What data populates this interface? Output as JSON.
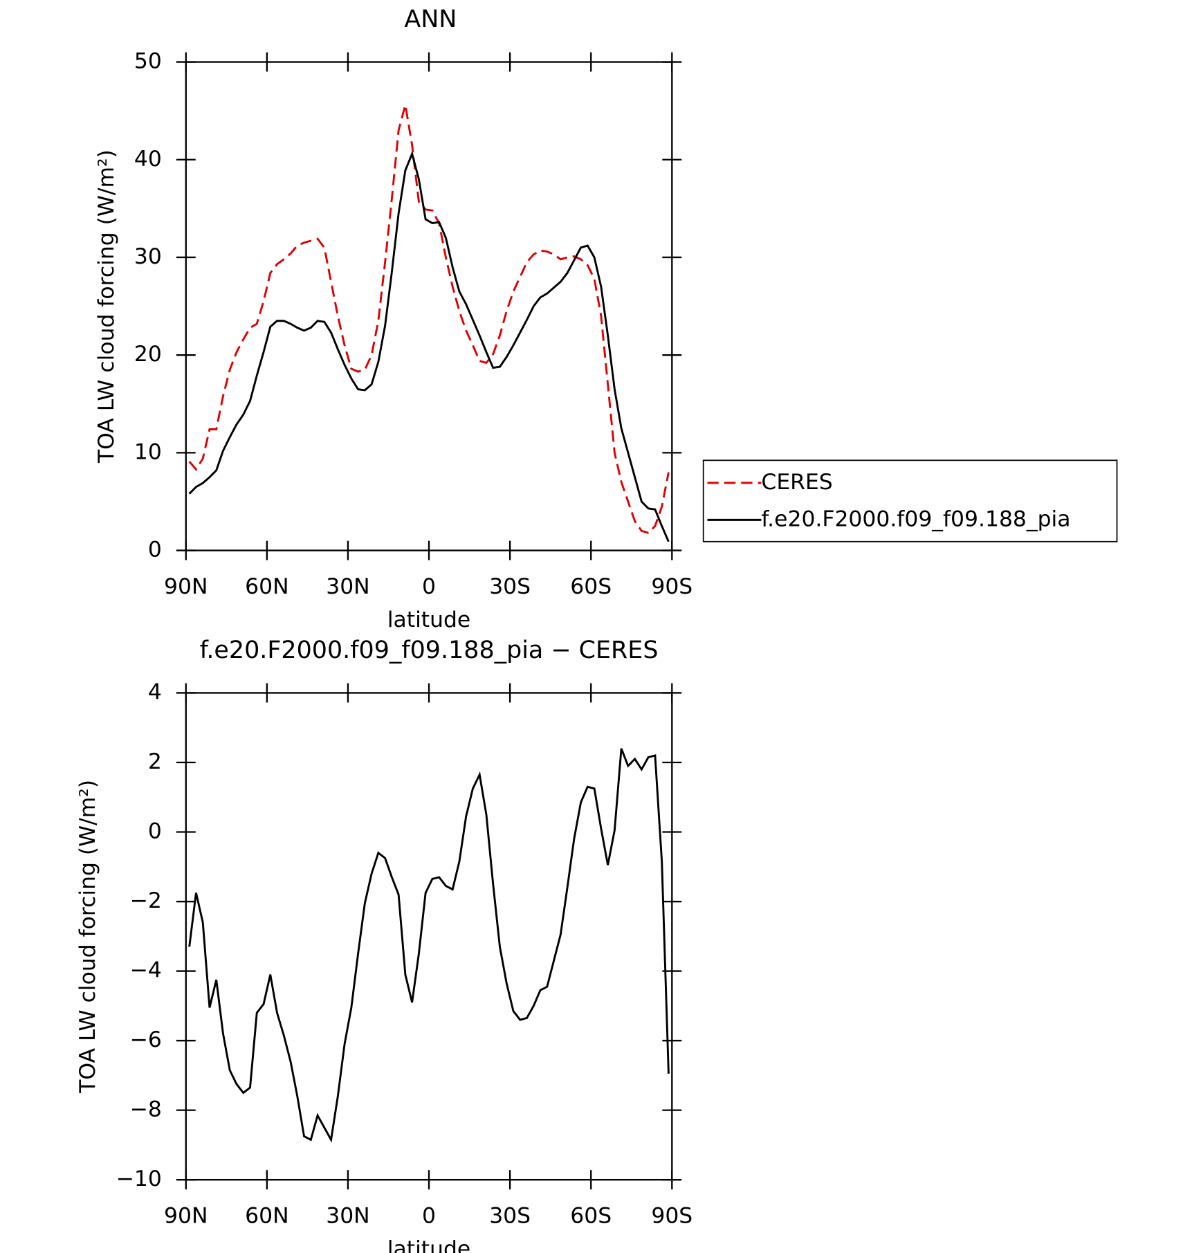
{
  "chart_data": [
    {
      "type": "line",
      "title": "ANN",
      "xlabel": "latitude",
      "ylabel": "TOA LW cloud forcing (W/m²)",
      "x": [
        88.75,
        86.25,
        83.75,
        81.25,
        78.75,
        76.25,
        73.75,
        71.25,
        68.75,
        66.25,
        63.75,
        61.25,
        58.75,
        56.25,
        53.75,
        51.25,
        48.75,
        46.25,
        43.75,
        41.25,
        38.75,
        36.25,
        33.75,
        31.25,
        28.75,
        26.25,
        23.75,
        21.25,
        18.75,
        16.25,
        13.75,
        11.25,
        8.75,
        6.25,
        3.75,
        1.25,
        -1.25,
        -3.75,
        -6.25,
        -8.75,
        -11.25,
        -13.75,
        -16.25,
        -18.75,
        -21.25,
        -23.75,
        -26.25,
        -28.75,
        -31.25,
        -33.75,
        -36.25,
        -38.75,
        -41.25,
        -43.75,
        -46.25,
        -48.75,
        -51.25,
        -53.75,
        -56.25,
        -58.75,
        -61.25,
        -63.75,
        -66.25,
        -68.75,
        -71.25,
        -73.75,
        -76.25,
        -78.75,
        -81.25,
        -83.75,
        -86.25,
        -88.75
      ],
      "series": [
        {
          "name": "CERES",
          "color": "#e00000",
          "dash": true,
          "values": [
            9.1,
            8.3,
            9.4,
            12.4,
            12.4,
            15.8,
            18.5,
            20.3,
            21.6,
            22.8,
            23.2,
            25.5,
            28.4,
            29.3,
            29.8,
            30.4,
            31.2,
            31.5,
            31.7,
            31.9,
            31.0,
            27.5,
            24.0,
            21.0,
            18.6,
            18.3,
            18.5,
            20.0,
            23.5,
            29.5,
            36.0,
            43.0,
            45.6,
            41.5,
            35.7,
            34.9,
            34.8,
            33.5,
            30.0,
            27.0,
            24.5,
            22.5,
            21.0,
            19.4,
            19.2,
            20.1,
            22.0,
            24.5,
            26.5,
            28.0,
            29.5,
            30.3,
            30.7,
            30.6,
            30.3,
            29.8,
            30.0,
            30.1,
            29.8,
            29.2,
            27.8,
            24.0,
            17.0,
            10.0,
            7.0,
            5.0,
            3.0,
            2.0,
            1.8,
            2.5,
            4.5,
            8.0
          ]
        },
        {
          "name": "f.e20.F2000.f09_f09.188_pia",
          "color": "#000000",
          "dash": false,
          "values": [
            5.8,
            6.5,
            6.9,
            7.5,
            8.2,
            10.2,
            11.6,
            12.9,
            13.9,
            15.3,
            17.9,
            20.3,
            22.9,
            23.5,
            23.5,
            23.2,
            22.8,
            22.5,
            22.8,
            23.5,
            23.4,
            22.3,
            20.6,
            19.0,
            17.6,
            16.5,
            16.4,
            17.0,
            19.3,
            23.0,
            28.5,
            34.5,
            38.9,
            40.6,
            38.0,
            33.9,
            33.5,
            33.6,
            32.0,
            29.0,
            26.5,
            25.2,
            23.6,
            22.0,
            20.3,
            18.7,
            18.8,
            19.8,
            21.0,
            22.3,
            23.6,
            25.0,
            25.9,
            26.3,
            26.9,
            27.5,
            28.4,
            29.7,
            31.0,
            31.2,
            30.0,
            27.0,
            22.0,
            16.5,
            12.5,
            10.0,
            7.5,
            5.0,
            4.3,
            4.2,
            2.5,
            0.9
          ]
        }
      ],
      "xlim": [
        90,
        -90
      ],
      "xticks": [
        {
          "value": 90,
          "label": "90N"
        },
        {
          "value": 60,
          "label": "60N"
        },
        {
          "value": 30,
          "label": "30N"
        },
        0,
        {
          "value": -30,
          "label": "30S"
        },
        {
          "value": -60,
          "label": "60S"
        },
        {
          "value": -90,
          "label": "90S"
        }
      ],
      "ylim": [
        0,
        50
      ],
      "yticks": [
        0,
        10,
        20,
        30,
        40,
        50
      ],
      "legend": "right"
    },
    {
      "type": "line",
      "title": "f.e20.F2000.f09_f09.188_pia − CERES",
      "xlabel": "latitude",
      "ylabel": "TOA LW cloud forcing (W/m²)",
      "x": [
        88.75,
        86.25,
        83.75,
        81.25,
        78.75,
        76.25,
        73.75,
        71.25,
        68.75,
        66.25,
        63.75,
        61.25,
        58.75,
        56.25,
        53.75,
        51.25,
        48.75,
        46.25,
        43.75,
        41.25,
        38.75,
        36.25,
        33.75,
        31.25,
        28.75,
        26.25,
        23.75,
        21.25,
        18.75,
        16.25,
        13.75,
        11.25,
        8.75,
        6.25,
        3.75,
        1.25,
        -1.25,
        -3.75,
        -6.25,
        -8.75,
        -11.25,
        -13.75,
        -16.25,
        -18.75,
        -21.25,
        -23.75,
        -26.25,
        -28.75,
        -31.25,
        -33.75,
        -36.25,
        -38.75,
        -41.25,
        -43.75,
        -46.25,
        -48.75,
        -51.25,
        -53.75,
        -56.25,
        -58.75,
        -61.25,
        -63.75,
        -66.25,
        -68.75,
        -71.25,
        -73.75,
        -76.25,
        -78.75,
        -81.25,
        -83.75,
        -86.25,
        -88.75
      ],
      "series": [
        {
          "color": "#000000",
          "dash": false,
          "values": [
            -3.3,
            -1.75,
            -2.6,
            -5.05,
            -4.25,
            -5.8,
            -6.85,
            -7.25,
            -7.5,
            -7.35,
            -5.2,
            -4.95,
            -4.1,
            -5.2,
            -5.85,
            -6.6,
            -7.6,
            -8.75,
            -8.85,
            -8.15,
            -8.5,
            -8.85,
            -7.6,
            -6.1,
            -5.05,
            -3.5,
            -2.05,
            -1.2,
            -0.6,
            -0.75,
            -1.3,
            -1.8,
            -4.1,
            -4.9,
            -3.5,
            -1.75,
            -1.35,
            -1.3,
            -1.55,
            -1.65,
            -0.85,
            0.45,
            1.25,
            1.65,
            0.5,
            -1.5,
            -3.3,
            -4.35,
            -5.15,
            -5.4,
            -5.35,
            -5.0,
            -4.55,
            -4.45,
            -3.7,
            -2.95,
            -1.6,
            -0.2,
            0.85,
            1.3,
            1.25,
            0.1,
            -0.95,
            0.05,
            2.4,
            1.9,
            2.1,
            1.8,
            2.15,
            2.2,
            -0.85,
            -6.95
          ]
        }
      ],
      "xlim": [
        90,
        -90
      ],
      "xticks": [
        {
          "value": 90,
          "label": "90N"
        },
        {
          "value": 60,
          "label": "60N"
        },
        {
          "value": 30,
          "label": "30N"
        },
        0,
        {
          "value": -30,
          "label": "30S"
        },
        {
          "value": -60,
          "label": "60S"
        },
        {
          "value": -90,
          "label": "90S"
        }
      ],
      "ylim": [
        -10,
        4
      ],
      "yticks": [
        {
          "value": -10,
          "label": "−10"
        },
        {
          "value": -8,
          "label": "−8"
        },
        {
          "value": -6,
          "label": "−6"
        },
        {
          "value": -4,
          "label": "−4"
        },
        {
          "value": -2,
          "label": "−2"
        },
        0,
        2,
        4
      ]
    }
  ]
}
